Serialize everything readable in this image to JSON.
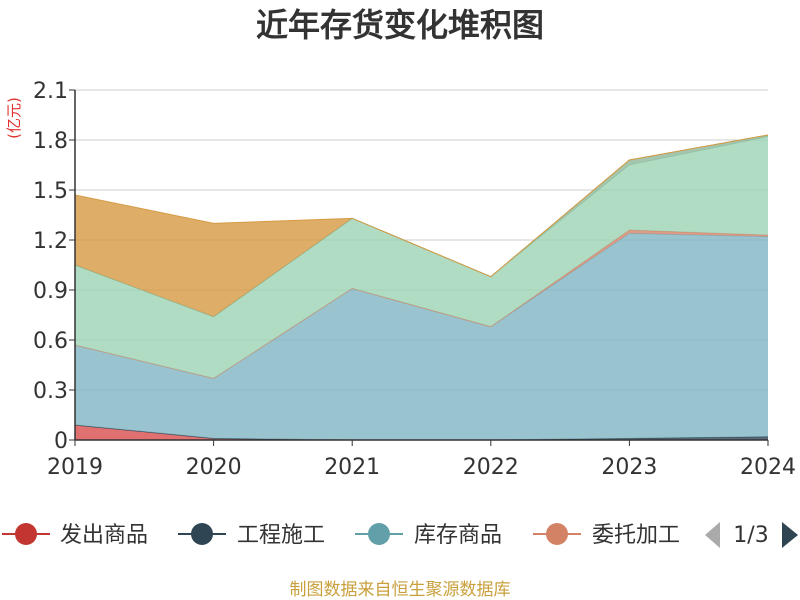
{
  "chart_data": {
    "type": "area",
    "stacked": true,
    "title": "近年存货变化堆积图",
    "unit_label": "(亿元)",
    "categories": [
      "2019",
      "2020",
      "2021",
      "2022",
      "2023",
      "2024"
    ],
    "ylim": [
      0,
      2.1
    ],
    "yticks": [
      "0",
      "0.3",
      "0.6",
      "0.9",
      "1.2",
      "1.5",
      "1.8",
      "2.1"
    ],
    "grid": true,
    "legend_position": "bottom",
    "series": [
      {
        "name": "发出商品",
        "color": "#d94e4e",
        "values": [
          0.09,
          0.01,
          0.0,
          0.0,
          0.0,
          0.0
        ]
      },
      {
        "name": "工程施工",
        "color": "#2f4554",
        "values": [
          0.0,
          0.0,
          0.0,
          0.0,
          0.01,
          0.02
        ]
      },
      {
        "name": "库存商品",
        "color": "#7fb4c2",
        "values": [
          0.48,
          0.36,
          0.91,
          0.68,
          1.23,
          1.2
        ]
      },
      {
        "name": "委托加工",
        "color": "#d4866b",
        "values": [
          0.0,
          0.0,
          0.0,
          0.0,
          0.02,
          0.01
        ]
      },
      {
        "name": "",
        "color": "#9dd3b5",
        "values": [
          0.48,
          0.37,
          0.42,
          0.3,
          0.39,
          0.59
        ]
      },
      {
        "name": "",
        "color": "#8fb79a",
        "values": [
          0.0,
          0.0,
          0.0,
          0.0,
          0.03,
          0.01
        ]
      },
      {
        "name": "",
        "color": "#d69a42",
        "values": [
          0.42,
          0.56,
          0.0,
          0.0,
          0.0,
          0.0
        ]
      }
    ]
  },
  "legend": {
    "visible_items": [
      "发出商品",
      "工程施工",
      "库存商品",
      "委托加工"
    ],
    "marker_colors": [
      "#c23531",
      "#2f4554",
      "#61a0a8",
      "#d48265"
    ],
    "page_indicator": "1/3"
  },
  "source_text": "制图数据来自恒生聚源数据库"
}
